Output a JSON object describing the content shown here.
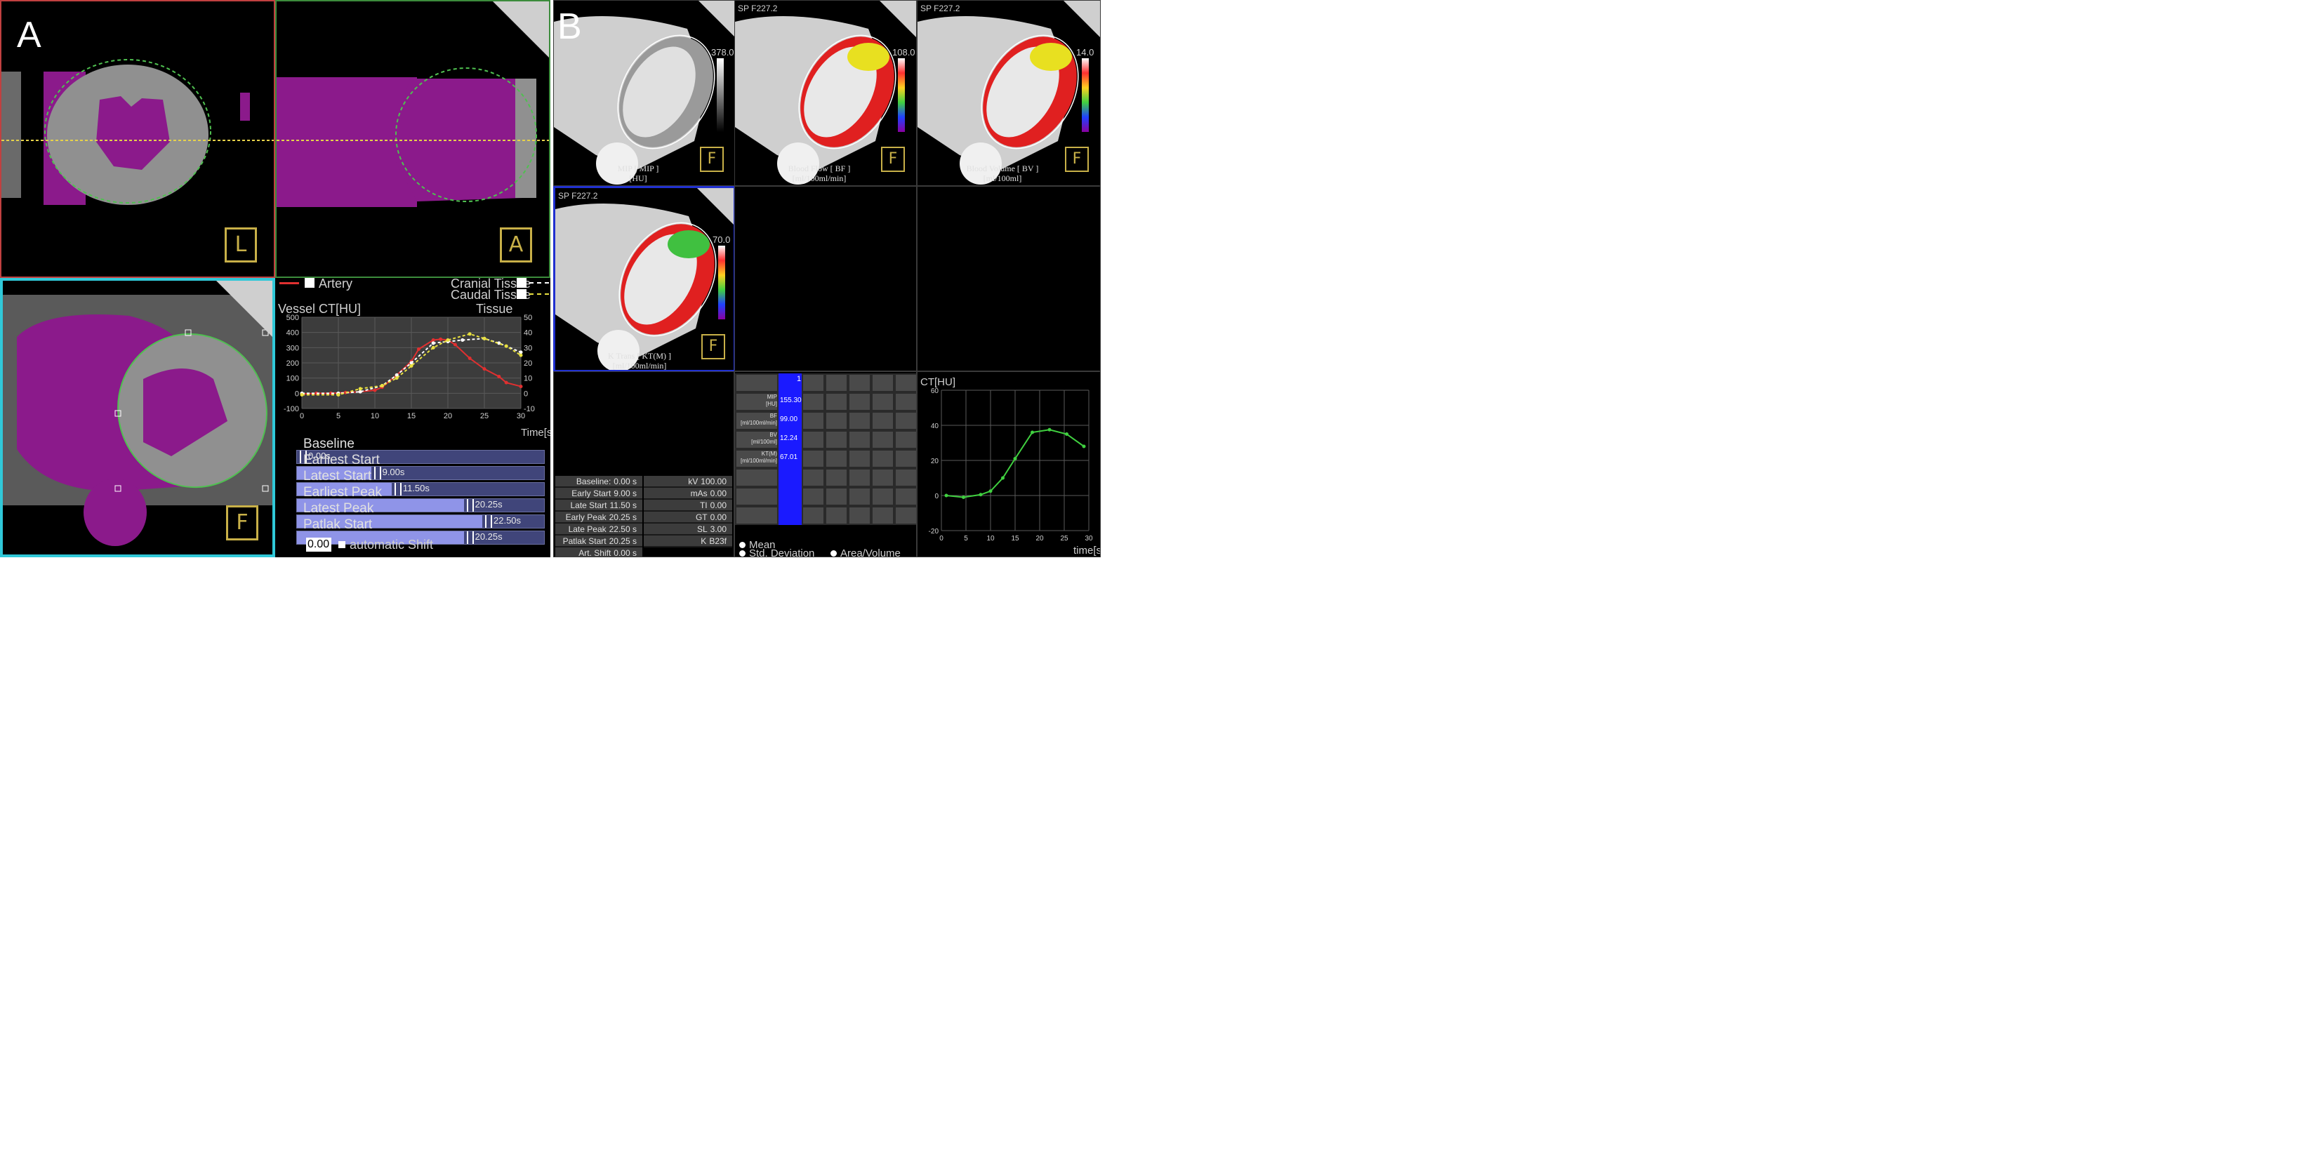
{
  "panel_a": {
    "letter": "A",
    "view_top_left": {
      "orientation": "L"
    },
    "view_top_right": {
      "orientation": "A"
    },
    "view_bottom_left": {
      "orientation": "F"
    },
    "legend": {
      "artery": "Artery",
      "cranial": "Cranial Tissue",
      "caudal": "Caudal Tissue"
    },
    "chart_labels": {
      "left_axis": "Vessel CT[HU]",
      "right_axis": "Tissue CT[HU]",
      "x_axis": "Time[s]"
    },
    "timing_bars": [
      {
        "label": "Baseline",
        "value": "0.00s",
        "fraction": 0.0
      },
      {
        "label": "Earliest Start",
        "value": "9.00s",
        "fraction": 0.3
      },
      {
        "label": "Latest Start",
        "value": "11.50s",
        "fraction": 0.383
      },
      {
        "label": "Earliest Peak",
        "value": "20.25s",
        "fraction": 0.675
      },
      {
        "label": "Latest Peak",
        "value": "22.50s",
        "fraction": 0.75
      },
      {
        "label": "Patlak Start",
        "value": "20.25s",
        "fraction": 0.675
      }
    ],
    "shift_value": "0.00",
    "shift_label": "automatic Shift"
  },
  "panel_b": {
    "letter": "B",
    "maps": [
      {
        "caption1": "MIP [ MIP ]",
        "caption2": "[HU]",
        "scale_max": "378.0",
        "header": "",
        "orientation": "F"
      },
      {
        "caption1": "Blood Flow [ BF ]",
        "caption2": "[ml/100ml/min]",
        "scale_max": "108.0",
        "header": "SP F227.2",
        "orientation": "F"
      },
      {
        "caption1": "Blood Volume [ BV ]",
        "caption2": "[ml/100ml]",
        "scale_max": "14.0",
        "header": "SP F227.2",
        "orientation": "F"
      },
      {
        "caption1": "K Trans [ KT(M) ]",
        "caption2": "[ml/100ml/min]",
        "scale_max": "70.0",
        "header": "SP F227.2",
        "orientation": "F"
      }
    ],
    "params_left": [
      {
        "label": "Baseline:",
        "value": "0.00 s"
      },
      {
        "label": "Early Start",
        "value": "9.00 s"
      },
      {
        "label": "Late Start",
        "value": "11.50 s"
      },
      {
        "label": "Early Peak",
        "value": "20.25 s"
      },
      {
        "label": "Late Peak",
        "value": "22.50 s"
      },
      {
        "label": "Patlak Start",
        "value": "20.25 s"
      },
      {
        "label": "Art. Shift",
        "value": "0.00 s"
      }
    ],
    "params_right": [
      {
        "label": "kV",
        "value": "100.00"
      },
      {
        "label": "mAs",
        "value": "0.00"
      },
      {
        "label": "TI",
        "value": "0.00"
      },
      {
        "label": "GT",
        "value": "0.00"
      },
      {
        "label": "SL",
        "value": "3.00"
      },
      {
        "label": "K",
        "value": "B23f"
      }
    ],
    "table": {
      "column_header": "1",
      "rows": [
        {
          "label": "MIP\n[HU]",
          "value": "155.30"
        },
        {
          "label": "BF\n[ml/100ml/min]",
          "value": "99.00"
        },
        {
          "label": "BV\n[ml/100ml]",
          "value": "12.24"
        },
        {
          "label": "KT(M)\n[ml/100ml/min]",
          "value": "67.01"
        }
      ]
    },
    "radio_options": {
      "mean": "Mean",
      "std": "Std. Deviation",
      "area": "Area/Volume"
    },
    "small_chart_labels": {
      "y_axis": "CT[HU]",
      "x_axis": "time[s]"
    }
  },
  "chart_data": [
    {
      "type": "line",
      "x_ticks": [
        0,
        5,
        10,
        15,
        20,
        25,
        30
      ],
      "y_ticks_left": [
        -100,
        0,
        100,
        200,
        300,
        400,
        500
      ],
      "y_ticks_right": [
        -10,
        0,
        10,
        20,
        30,
        40,
        50
      ],
      "xlim": [
        0,
        30
      ],
      "ylim_left": [
        -100,
        500
      ],
      "ylim_right": [
        -10,
        50
      ],
      "xlabel": "Time[s]",
      "ylabel_left": "Vessel CT[HU]",
      "ylabel_right": "Tissue CT[HU]",
      "grid": true,
      "series": [
        {
          "name": "Artery",
          "color": "#e03030",
          "style": "solid",
          "axis": "left",
          "x": [
            0,
            2,
            4,
            6,
            8,
            10,
            11,
            13,
            15,
            16,
            18,
            19,
            20,
            21,
            23,
            25,
            27,
            28,
            30
          ],
          "y": [
            -5,
            0,
            0,
            5,
            10,
            20,
            40,
            120,
            210,
            290,
            350,
            355,
            350,
            320,
            230,
            160,
            110,
            70,
            45
          ]
        },
        {
          "name": "Cranial Tissue",
          "color": "#ffffff",
          "style": "dashed",
          "axis": "right",
          "x": [
            0,
            5,
            8,
            11,
            13,
            15,
            18,
            20,
            22,
            25,
            27,
            30
          ],
          "y": [
            0,
            0,
            1,
            5,
            12,
            20,
            33,
            34,
            35,
            36,
            33,
            27
          ]
        },
        {
          "name": "Caudal Tissue",
          "color": "#e8e040",
          "style": "dashed",
          "axis": "right",
          "x": [
            0,
            5,
            8,
            11,
            13,
            15,
            18,
            20,
            23,
            25,
            28,
            30
          ],
          "y": [
            -1,
            -1,
            3,
            5,
            10,
            18,
            30,
            35,
            39,
            36,
            31,
            25
          ]
        }
      ]
    },
    {
      "type": "line",
      "x_ticks": [
        0,
        5,
        10,
        15,
        20,
        25,
        30
      ],
      "y_ticks": [
        -20,
        0,
        20,
        40,
        60
      ],
      "xlim": [
        0,
        30
      ],
      "ylim": [
        -20,
        60
      ],
      "ylabel": "CT[HU]",
      "xlabel": "time[s]",
      "grid": true,
      "series": [
        {
          "color": "#40d040",
          "x": [
            1,
            4.5,
            8,
            10,
            12.5,
            15,
            18.5,
            22,
            25.5,
            29
          ],
          "y": [
            0,
            -1,
            0.5,
            2.5,
            10,
            21,
            36,
            37.5,
            35,
            28
          ]
        }
      ]
    }
  ],
  "colors": {
    "panel_a_border_top_left": "#c04040",
    "panel_a_border_top_right": "#3c8c3c",
    "panel_a_border_bottom": "#30c8d8",
    "panel_b_selected_border": "#2030d0",
    "myocardium_magenta": "#8b1a8b",
    "table_highlight": "#1a1aff"
  }
}
